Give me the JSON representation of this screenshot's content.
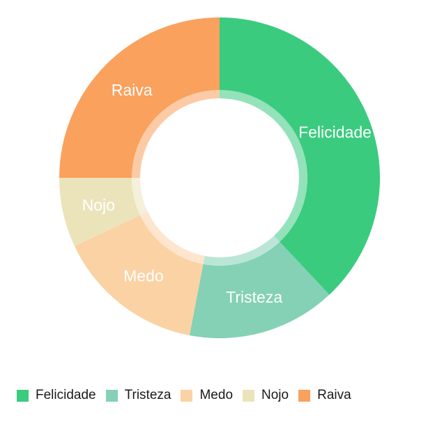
{
  "chart_data": {
    "type": "pie",
    "variant": "donut",
    "title": "",
    "categories": [
      "Felicidade",
      "Tristeza",
      "Medo",
      "Nojo",
      "Raiva"
    ],
    "values": [
      38,
      15,
      15,
      7,
      25
    ],
    "colors": [
      "#3ACB7F",
      "#84D1B6",
      "#FBD2A4",
      "#EBE4BB",
      "#FAA15D"
    ],
    "legend_position": "bottom-left",
    "grid": false
  }
}
